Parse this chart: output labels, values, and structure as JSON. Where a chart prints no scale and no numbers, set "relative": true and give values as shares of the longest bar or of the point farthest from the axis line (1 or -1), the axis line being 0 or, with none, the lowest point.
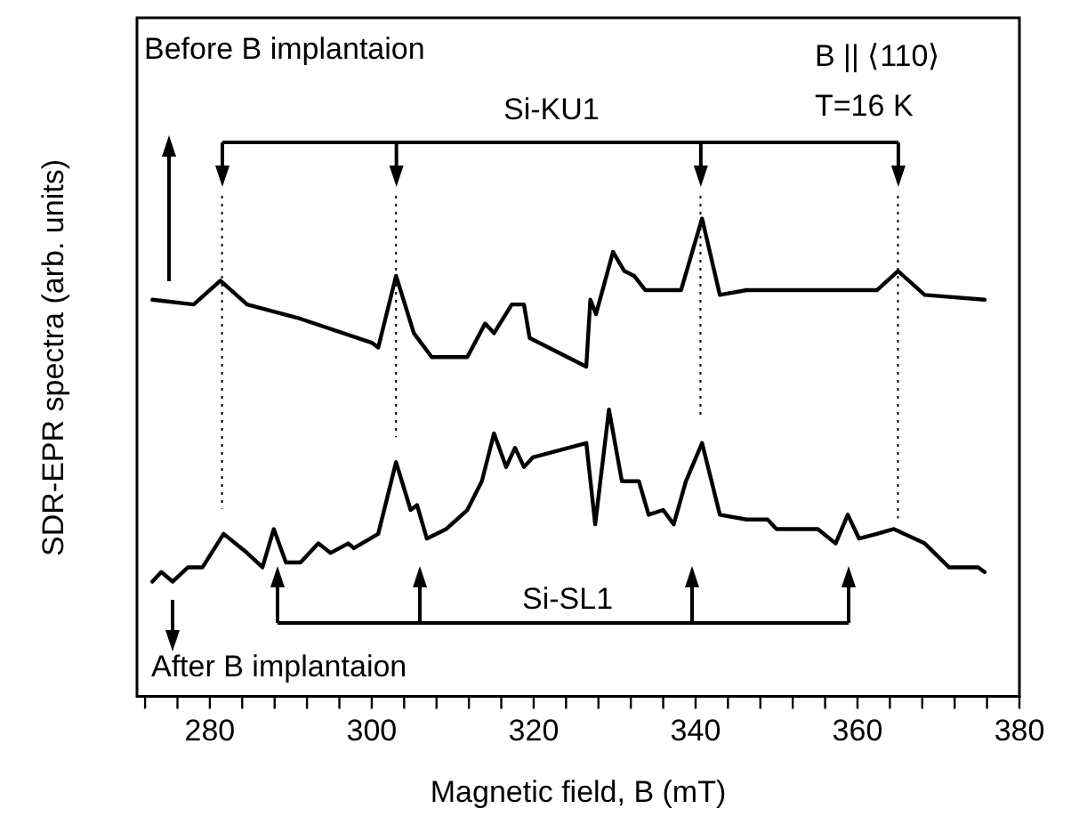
{
  "chart_data": {
    "type": "line",
    "xlabel": "Magnetic field, B (mT)",
    "ylabel": "SDR-EPR spectra (arb. units)",
    "relative": true,
    "marker": "none",
    "line_style": "solid",
    "xlim": [
      271,
      380
    ],
    "xticks": [
      280,
      300,
      320,
      340,
      360,
      380
    ],
    "annotations": [
      "B || ⟨110⟩",
      "T=16 K",
      "Si-KU1",
      "Si-SL1",
      "Before B implantaion",
      "After B implantaion"
    ],
    "ref_lines": [
      {
        "axis": "x",
        "value": 281.5,
        "line_style": "dotted",
        "color": "#000000"
      },
      {
        "axis": "x",
        "value": 303,
        "line_style": "dotted",
        "color": "#000000"
      },
      {
        "axis": "x",
        "value": 340.6,
        "line_style": "dotted",
        "color": "#000000"
      },
      {
        "axis": "x",
        "value": 365,
        "line_style": "dotted",
        "color": "#000000"
      }
    ],
    "series": [
      {
        "color": "#000000",
        "x": [
          272.9,
          278.0,
          281.3,
          284.6,
          291.2,
          300.0,
          300.8,
          303.0,
          305.2,
          307.4,
          311.8,
          314.0,
          315.1,
          317.3,
          318.8,
          319.5,
          323,
          326.5,
          327.0,
          327.7,
          329.8,
          331.2,
          332.4,
          333.8,
          338.2,
          340.8,
          343.0,
          346.3,
          362.4,
          365.0,
          368.3,
          375.7
        ],
        "values": [
          0.83,
          0.82,
          0.87,
          0.82,
          0.79,
          0.74,
          0.73,
          0.88,
          0.76,
          0.71,
          0.71,
          0.78,
          0.76,
          0.82,
          0.82,
          0.75,
          null,
          0.69,
          0.83,
          0.8,
          0.93,
          0.89,
          0.88,
          0.85,
          0.85,
          1,
          0.84,
          0.85,
          0.85,
          0.89,
          0.84,
          0.83
        ]
      },
      {
        "color": "#000000",
        "x": [
          272.9,
          274.0,
          275.4,
          277.3,
          279.1,
          281.7,
          284.6,
          286.5,
          287.9,
          289.4,
          291.2,
          293.4,
          294.9,
          297.1,
          297.8,
          300.8,
          303.0,
          304.8,
          305.6,
          306.8,
          309.2,
          311.8,
          313.6,
          315.1,
          316.6,
          317.7,
          318.8,
          319.9,
          323,
          326.5,
          327.6,
          329.3,
          330.9,
          333.0,
          334.2,
          336.0,
          337.3,
          338.8,
          340.8,
          343.0,
          346.3,
          348.9,
          350.0,
          355.1,
          357.3,
          358.8,
          360.2,
          362.4,
          364.5,
          368.3,
          371.3,
          374.9,
          375.7
        ],
        "values": [
          0.24,
          0.26,
          0.24,
          0.27,
          0.27,
          0.34,
          0.3,
          0.27,
          0.35,
          0.28,
          0.28,
          0.32,
          0.3,
          0.32,
          0.31,
          0.34,
          0.49,
          0.39,
          0.4,
          0.33,
          0.35,
          0.39,
          0.45,
          0.55,
          0.48,
          0.52,
          0.48,
          0.5,
          null,
          0.53,
          0.36,
          0.6,
          0.45,
          0.45,
          0.38,
          0.39,
          0.36,
          0.45,
          0.53,
          0.38,
          0.37,
          0.37,
          0.35,
          0.35,
          0.32,
          0.38,
          0.33,
          0.34,
          0.35,
          0.32,
          0.27,
          0.27,
          0.26
        ]
      }
    ]
  }
}
